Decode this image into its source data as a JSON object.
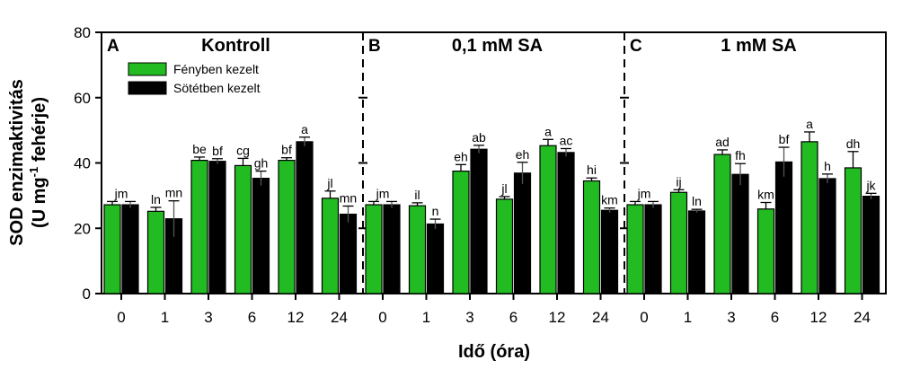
{
  "chart_data": {
    "type": "bar",
    "ylabel_line1": "SOD enzimaktivitás",
    "ylabel_line2_pre": "(U mg",
    "ylabel_sup": "-1",
    "ylabel_line2_post": " fehérje)",
    "xlabel": "Idő (óra)",
    "ylim": [
      0,
      80
    ],
    "yticks": [
      "0",
      "20",
      "40",
      "60",
      "80"
    ],
    "categories": [
      "0",
      "1",
      "3",
      "6",
      "12",
      "24"
    ],
    "legend": {
      "placement": "top-left of panel A",
      "entries": [
        {
          "name": "Fényben kezelt",
          "color": "#22bb22"
        },
        {
          "name": "Sötétben kezelt",
          "color": "#000000"
        }
      ]
    },
    "panels": [
      {
        "letter": "A",
        "title": "Kontroll",
        "series": [
          {
            "name": "Fényben kezelt",
            "color": "#22bb22",
            "values": [
              27.2,
              25.2,
              40.8,
              39.2,
              40.8,
              29.2
            ],
            "errors": [
              1.0,
              1.2,
              1.0,
              2.2,
              0.8,
              2.2
            ]
          },
          {
            "name": "Sötétben kezelt",
            "color": "#000000",
            "values": [
              27.2,
              22.9,
              40.5,
              35.3,
              46.5,
              24.3
            ],
            "errors": [
              1.0,
              5.5,
              0.8,
              2.2,
              1.4,
              2.5
            ]
          }
        ],
        "labels": [
          {
            "text": "jm",
            "pos": "pair",
            "idx": 0
          },
          {
            "text": "ln",
            "pos": "light",
            "idx": 1
          },
          {
            "text": "mn",
            "pos": "dark",
            "idx": 1
          },
          {
            "text": "be",
            "pos": "light",
            "idx": 2
          },
          {
            "text": "bf",
            "pos": "dark",
            "idx": 2
          },
          {
            "text": "cg",
            "pos": "light",
            "idx": 3
          },
          {
            "text": "gh",
            "pos": "dark",
            "idx": 3
          },
          {
            "text": "bf",
            "pos": "light",
            "idx": 4
          },
          {
            "text": "a",
            "pos": "dark",
            "idx": 4
          },
          {
            "text": "jl",
            "pos": "light",
            "idx": 5
          },
          {
            "text": "mn",
            "pos": "dark",
            "idx": 5
          }
        ]
      },
      {
        "letter": "B",
        "title": "0,1 mM SA",
        "series": [
          {
            "name": "Fényben kezelt",
            "color": "#22bb22",
            "values": [
              27.2,
              26.9,
              37.5,
              28.9,
              45.3,
              34.5
            ],
            "errors": [
              1.0,
              0.9,
              2.0,
              0.8,
              1.9,
              0.9
            ]
          },
          {
            "name": "Sötétben kezelt",
            "color": "#000000",
            "values": [
              27.2,
              21.3,
              44.2,
              36.9,
              43.2,
              25.5
            ],
            "errors": [
              1.0,
              1.5,
              1.2,
              3.3,
              1.2,
              0.7
            ]
          }
        ],
        "labels": [
          {
            "text": "jm",
            "pos": "pair",
            "idx": 0
          },
          {
            "text": "il",
            "pos": "light",
            "idx": 1
          },
          {
            "text": "n",
            "pos": "dark",
            "idx": 1
          },
          {
            "text": "eh",
            "pos": "light",
            "idx": 2
          },
          {
            "text": "ab",
            "pos": "dark",
            "idx": 2
          },
          {
            "text": "jl",
            "pos": "light",
            "idx": 3
          },
          {
            "text": "eh",
            "pos": "dark",
            "idx": 3
          },
          {
            "text": "a",
            "pos": "light",
            "idx": 4
          },
          {
            "text": "ac",
            "pos": "dark",
            "idx": 4
          },
          {
            "text": "hi",
            "pos": "light",
            "idx": 5
          },
          {
            "text": "km",
            "pos": "dark",
            "idx": 5
          }
        ]
      },
      {
        "letter": "C",
        "title": "1 mM SA",
        "series": [
          {
            "name": "Fényben kezelt",
            "color": "#22bb22",
            "values": [
              27.2,
              31.0,
              42.6,
              25.9,
              46.5,
              38.5
            ],
            "errors": [
              1.0,
              0.8,
              1.4,
              2.0,
              3.0,
              5.0
            ]
          },
          {
            "name": "Sötétben kezelt",
            "color": "#000000",
            "values": [
              27.2,
              25.3,
              36.5,
              40.3,
              35.2,
              29.8
            ],
            "errors": [
              1.0,
              0.5,
              3.3,
              4.5,
              1.4,
              0.9
            ]
          }
        ],
        "labels": [
          {
            "text": "jm",
            "pos": "pair",
            "idx": 0
          },
          {
            "text": "ij",
            "pos": "light",
            "idx": 1
          },
          {
            "text": "ln",
            "pos": "dark",
            "idx": 1
          },
          {
            "text": "ad",
            "pos": "light",
            "idx": 2
          },
          {
            "text": "fh",
            "pos": "dark",
            "idx": 2
          },
          {
            "text": "km",
            "pos": "light",
            "idx": 3
          },
          {
            "text": "bf",
            "pos": "dark",
            "idx": 3
          },
          {
            "text": "a",
            "pos": "light",
            "idx": 4
          },
          {
            "text": "h",
            "pos": "dark",
            "idx": 4
          },
          {
            "text": "dh",
            "pos": "light",
            "idx": 5
          },
          {
            "text": "jk",
            "pos": "dark",
            "idx": 5
          }
        ]
      }
    ]
  }
}
